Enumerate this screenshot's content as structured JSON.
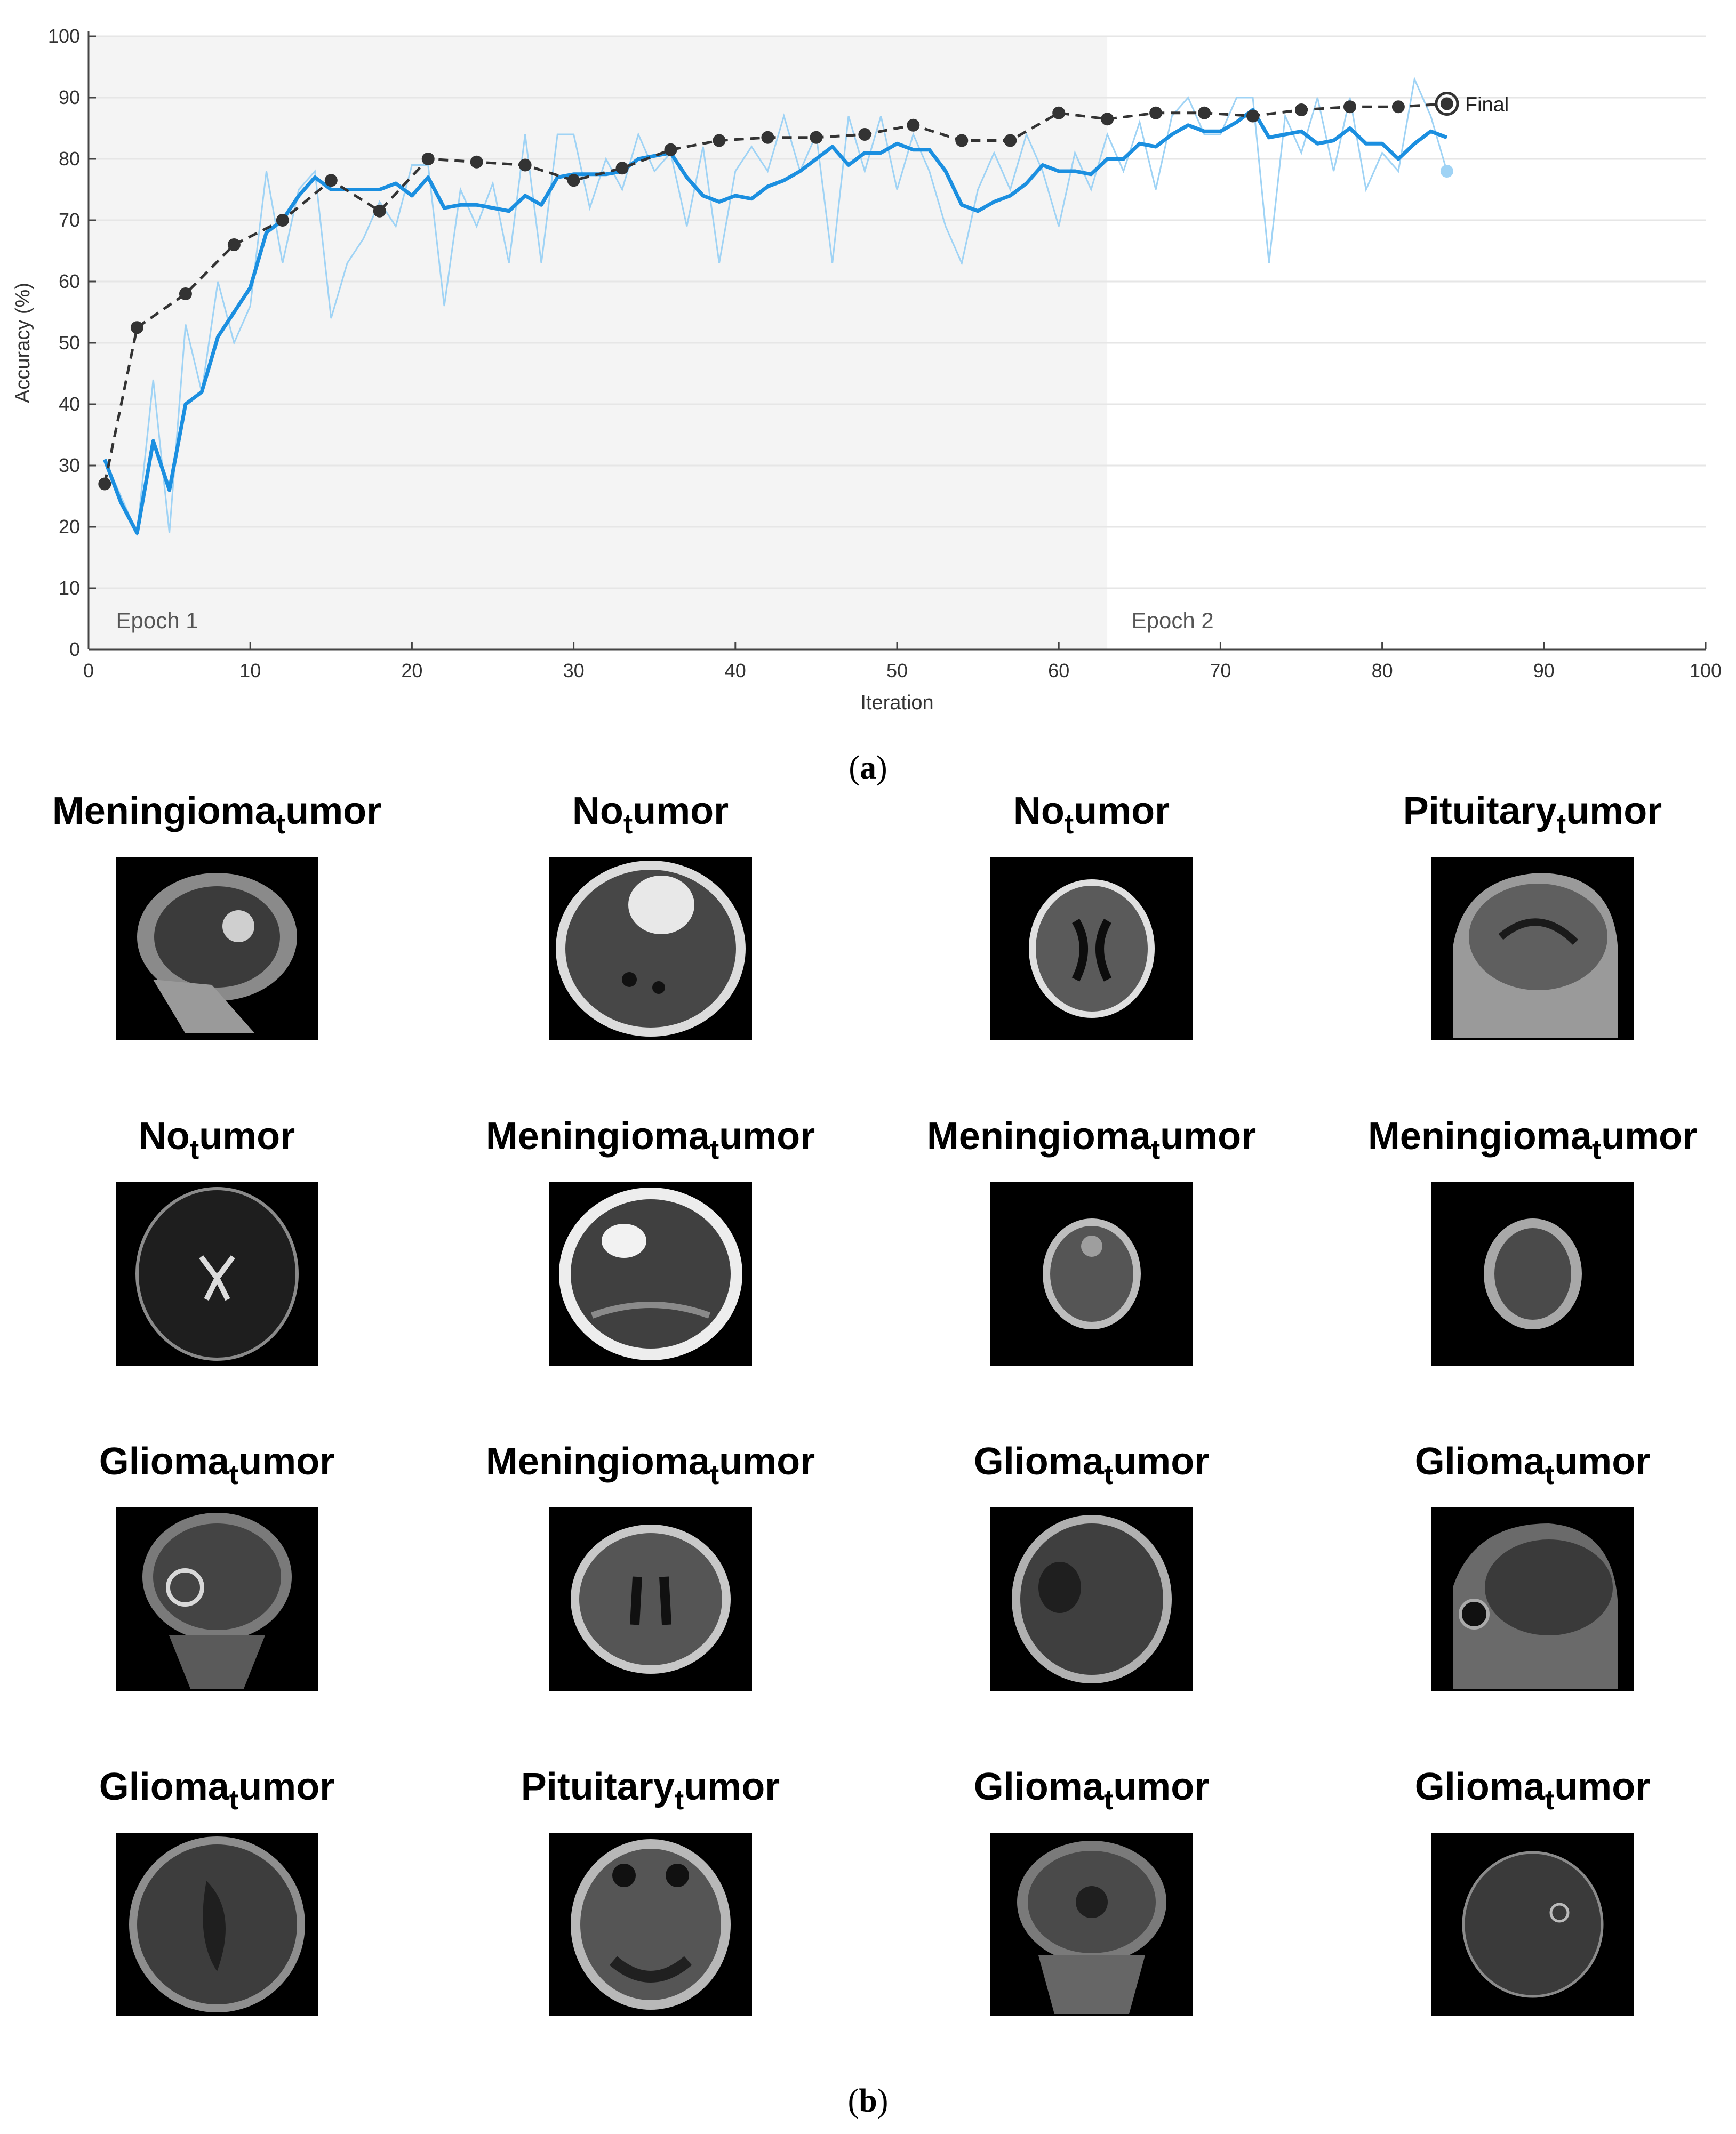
{
  "chart_data": {
    "type": "line",
    "xlabel": "Iteration",
    "ylabel": "Accuracy (%)",
    "xlim": [
      0,
      100
    ],
    "ylim": [
      0,
      100
    ],
    "xticks": [
      0,
      10,
      20,
      30,
      40,
      50,
      60,
      70,
      80,
      90,
      100
    ],
    "yticks": [
      0,
      10,
      20,
      30,
      40,
      50,
      60,
      70,
      80,
      90,
      100
    ],
    "grid": "horizontal",
    "epoch_labels": [
      "Epoch 1",
      "Epoch 2"
    ],
    "epoch_boundary": 63,
    "final_label": "Final",
    "series": [
      {
        "style": "raw-light",
        "color": "#9fd3f5",
        "x": [
          1,
          2,
          3,
          4,
          5,
          6,
          7,
          8,
          9,
          10,
          11,
          12,
          13,
          14,
          15,
          16,
          17,
          18,
          19,
          20,
          21,
          22,
          23,
          24,
          25,
          26,
          27,
          28,
          29,
          30,
          31,
          32,
          33,
          34,
          35,
          36,
          37,
          38,
          39,
          40,
          41,
          42,
          43,
          44,
          45,
          46,
          47,
          48,
          49,
          50,
          51,
          52,
          53,
          54,
          55,
          56,
          57,
          58,
          59,
          60,
          61,
          62,
          63,
          64,
          65,
          66,
          67,
          68,
          69,
          70,
          71,
          72,
          73,
          74,
          75,
          76,
          77,
          78,
          79,
          80,
          81,
          82,
          83,
          84
        ],
        "values": [
          31,
          25,
          19,
          44,
          19,
          53,
          42,
          60,
          50,
          56,
          78,
          63,
          75,
          78,
          54,
          63,
          67,
          73,
          69,
          79,
          79,
          56,
          75,
          69,
          76,
          63,
          84,
          63,
          84,
          84,
          72,
          80,
          75,
          84,
          78,
          81,
          69,
          82,
          63,
          78,
          82,
          78,
          87,
          78,
          84,
          63,
          87,
          78,
          87,
          75,
          84,
          78,
          69,
          63,
          75,
          81,
          75,
          84,
          78,
          69,
          81,
          75,
          84,
          78,
          86,
          75,
          87,
          90,
          84,
          84,
          90,
          90,
          63,
          87,
          81,
          90,
          78,
          90,
          75,
          81,
          78,
          93,
          87,
          78
        ]
      },
      {
        "style": "smoothed",
        "color": "#1b8fe0",
        "x": [
          1,
          2,
          3,
          4,
          5,
          6,
          7,
          8,
          9,
          10,
          11,
          12,
          13,
          14,
          15,
          16,
          17,
          18,
          19,
          20,
          21,
          22,
          23,
          24,
          25,
          26,
          27,
          28,
          29,
          30,
          31,
          32,
          33,
          34,
          35,
          36,
          37,
          38,
          39,
          40,
          41,
          42,
          43,
          44,
          45,
          46,
          47,
          48,
          49,
          50,
          51,
          52,
          53,
          54,
          55,
          56,
          57,
          58,
          59,
          60,
          61,
          62,
          63,
          64,
          65,
          66,
          67,
          68,
          69,
          70,
          71,
          72,
          73,
          74,
          75,
          76,
          77,
          78,
          79,
          80,
          81,
          82,
          83,
          84
        ],
        "values": [
          31,
          24,
          19,
          34,
          26,
          40,
          42,
          51,
          55,
          59,
          68,
          70,
          74,
          77,
          75,
          75,
          75,
          75,
          76,
          74,
          77,
          72,
          72.5,
          72.5,
          72,
          71.5,
          74,
          72.5,
          77,
          77.5,
          77.5,
          77.5,
          78,
          80,
          80.5,
          81,
          77,
          74,
          73,
          74,
          73.5,
          75.5,
          76.5,
          78,
          80,
          82,
          79,
          81,
          81,
          82.5,
          81.5,
          81.5,
          78,
          72.5,
          71.5,
          73,
          74,
          76,
          79,
          78,
          78,
          77.5,
          80,
          80,
          82.5,
          82,
          84,
          85.5,
          84.5,
          84.5,
          86,
          88,
          83.5,
          84,
          84.5,
          82.5,
          83,
          85,
          82.5,
          82.5,
          80,
          82.5,
          84.5,
          83.5
        ]
      },
      {
        "style": "validation",
        "color": "#333333",
        "x": [
          1,
          3,
          6,
          9,
          12,
          15,
          18,
          21,
          24,
          27,
          30,
          33,
          36,
          39,
          42,
          45,
          48,
          51,
          54,
          57,
          60,
          63,
          66,
          69,
          72,
          75,
          78,
          81,
          84
        ],
        "values": [
          27,
          52.5,
          58,
          66,
          70,
          76.5,
          71.5,
          80,
          79.5,
          79,
          76.5,
          78.5,
          81.5,
          83,
          83.5,
          83.5,
          84,
          85.5,
          83,
          83,
          87.5,
          86.5,
          87.5,
          87.5,
          87,
          88,
          88.5,
          88.5,
          89
        ]
      }
    ]
  },
  "captions": {
    "a_letter": "a",
    "b_letter": "b"
  },
  "grid": {
    "cells": [
      {
        "title": "Meningioma",
        "sub": "t",
        "tail": "umor",
        "scan": "sagittal-lesion"
      },
      {
        "title": "No",
        "sub": "t",
        "tail": "umor",
        "scan": "axial-large-lesion"
      },
      {
        "title": "No",
        "sub": "t",
        "tail": "umor",
        "scan": "axial-gyri"
      },
      {
        "title": "Pituitary",
        "sub": "t",
        "tail": "umor",
        "scan": "sagittal-midline"
      },
      {
        "title": "No",
        "sub": "t",
        "tail": "umor",
        "scan": "axial-t2"
      },
      {
        "title": "Meningioma",
        "sub": "t",
        "tail": "umor",
        "scan": "axial-bright-lesion"
      },
      {
        "title": "Meningioma",
        "sub": "t",
        "tail": "umor",
        "scan": "axial-small"
      },
      {
        "title": "Meningioma",
        "sub": "t",
        "tail": "umor",
        "scan": "axial-small-ring"
      },
      {
        "title": "Glioma",
        "sub": "t",
        "tail": "umor",
        "scan": "coronal-ring-lesion"
      },
      {
        "title": "Meningioma",
        "sub": "t",
        "tail": "umor",
        "scan": "axial-ventricles"
      },
      {
        "title": "Glioma",
        "sub": "t",
        "tail": "umor",
        "scan": "axial-dark-lesion"
      },
      {
        "title": "Glioma",
        "sub": "t",
        "tail": "umor",
        "scan": "sagittal-dark"
      },
      {
        "title": "Glioma",
        "sub": "t",
        "tail": "umor",
        "scan": "axial-large-dark"
      },
      {
        "title": "Pituitary",
        "sub": "t",
        "tail": "umor",
        "scan": "axial-skull-base"
      },
      {
        "title": "Glioma",
        "sub": "t",
        "tail": "umor",
        "scan": "coronal-dark"
      },
      {
        "title": "Glioma",
        "sub": "t",
        "tail": "umor",
        "scan": "axial-faint"
      }
    ]
  }
}
